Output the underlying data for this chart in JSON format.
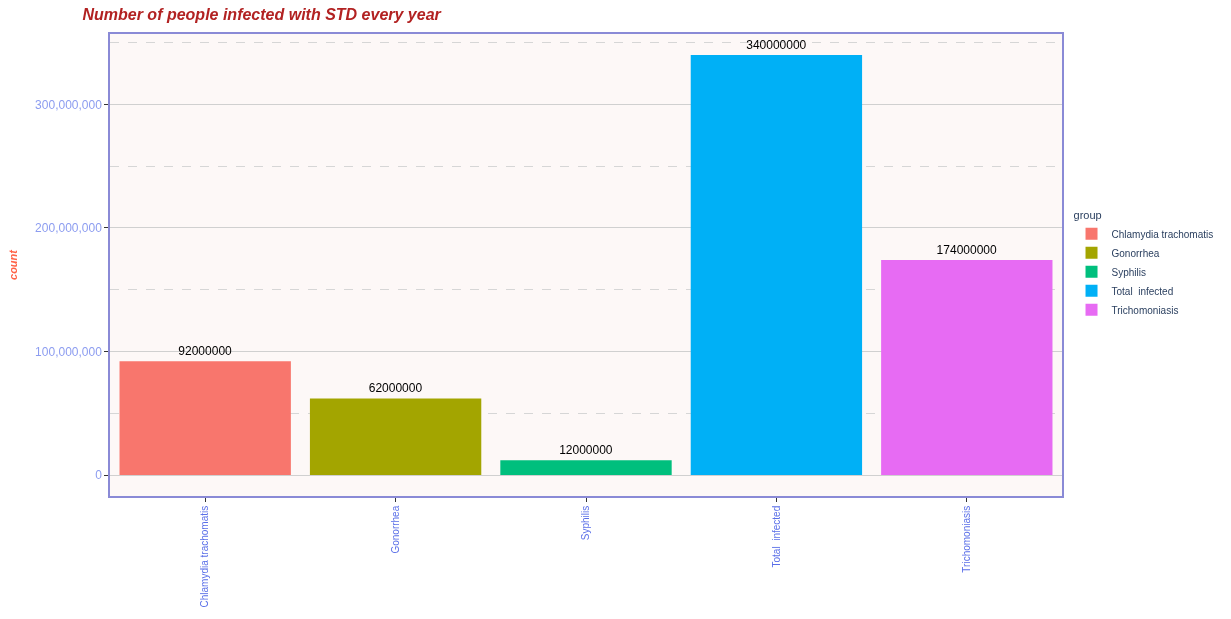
{
  "chart_data": {
    "type": "bar",
    "title": "Number of people infected with STD every year",
    "ylabel": "count",
    "categories": [
      "Chlamydia trachomatis",
      "Gonorrhea",
      "Syphilis",
      "Total  infected",
      "Trichomoniasis"
    ],
    "series": [
      {
        "name": "Chlamydia trachomatis",
        "color": "#f8766d",
        "values": [
          92000000,
          null,
          null,
          null,
          null
        ]
      },
      {
        "name": "Gonorrhea",
        "color": "#a3a500",
        "values": [
          null,
          62000000,
          null,
          null,
          null
        ]
      },
      {
        "name": "Syphilis",
        "color": "#00bf7d",
        "values": [
          null,
          null,
          12000000,
          null,
          null
        ]
      },
      {
        "name": "Total  infected",
        "color": "#00b0f6",
        "values": [
          null,
          null,
          null,
          340000000,
          null
        ]
      },
      {
        "name": "Trichomoniasis",
        "color": "#e76bf3",
        "values": [
          null,
          null,
          null,
          null,
          174000000
        ]
      }
    ],
    "ylim": [
      -17000000,
      357000000
    ],
    "yticks": [
      {
        "value": 0,
        "label": "0"
      },
      {
        "value": 100000000,
        "label": "100,000,000"
      },
      {
        "value": 200000000,
        "label": "200,000,000"
      },
      {
        "value": 300000000,
        "label": "300,000,000"
      }
    ],
    "grid": "y",
    "legend": "right",
    "legend_title": "group",
    "data_labels": true
  }
}
